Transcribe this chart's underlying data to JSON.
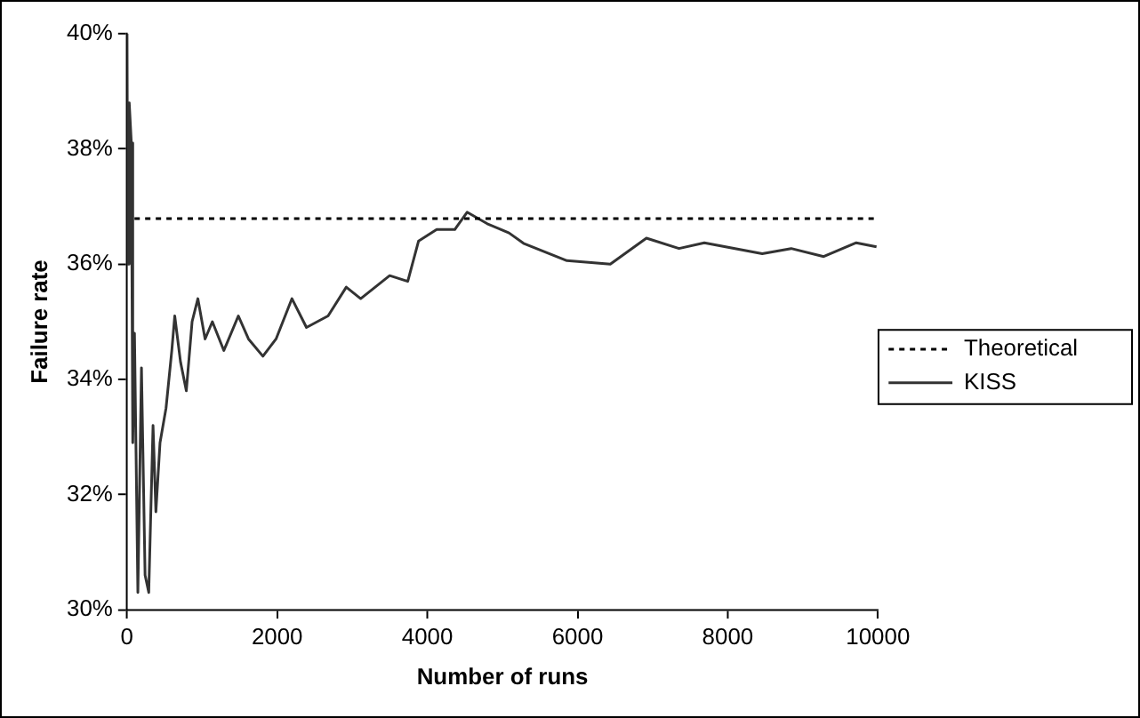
{
  "chart_data": {
    "type": "line",
    "xlabel": "Number of runs",
    "ylabel": "Failure rate",
    "xlim": [
      0,
      10000
    ],
    "xticks": [
      0,
      2000,
      4000,
      6000,
      8000,
      10000
    ],
    "ylim": [
      30,
      40
    ],
    "yticks": [
      {
        "value": 30,
        "label": "30%"
      },
      {
        "value": 32,
        "label": "32%"
      },
      {
        "value": 34,
        "label": "34%"
      },
      {
        "value": 36,
        "label": "36%"
      },
      {
        "value": 38,
        "label": "38%"
      },
      {
        "value": 40,
        "label": "40%"
      }
    ],
    "grid": false,
    "legend": "right",
    "marker": "none",
    "series": [
      {
        "name": "Theoretical",
        "color": "#000000",
        "line_style": "dotted",
        "x": [
          100,
          10000
        ],
        "values": [
          36.79,
          36.79
        ]
      },
      {
        "name": "KISS",
        "color": "#333333",
        "line_style": "solid",
        "x": [
          1,
          10,
          30,
          58,
          77,
          100,
          145,
          193,
          241,
          290,
          347,
          385,
          440,
          520,
          597,
          636,
          713,
          790,
          867,
          944,
          1040,
          1137,
          1290,
          1483,
          1618,
          1810,
          1985,
          2197,
          2390,
          2678,
          2920,
          3112,
          3498,
          3739,
          3883,
          4124,
          4365,
          4529,
          4798,
          5087,
          5280,
          5858,
          6436,
          6917,
          7351,
          7688,
          8459,
          8844,
          9278,
          9711,
          9981
        ],
        "values": [
          40,
          36,
          38.8,
          38.1,
          32.9,
          34.8,
          30.3,
          34.2,
          30.6,
          30.3,
          33.2,
          31.7,
          32.9,
          33.5,
          34.5,
          35.1,
          34.3,
          33.8,
          35,
          35.4,
          34.7,
          35,
          34.5,
          35.1,
          34.7,
          34.4,
          34.7,
          35.4,
          34.9,
          35.1,
          35.6,
          35.4,
          35.8,
          35.7,
          36.4,
          36.6,
          36.6,
          36.9,
          36.7,
          36.54,
          36.36,
          36.06,
          36,
          36.45,
          36.27,
          36.37,
          36.18,
          36.27,
          36.13,
          36.37,
          36.3
        ]
      }
    ]
  }
}
